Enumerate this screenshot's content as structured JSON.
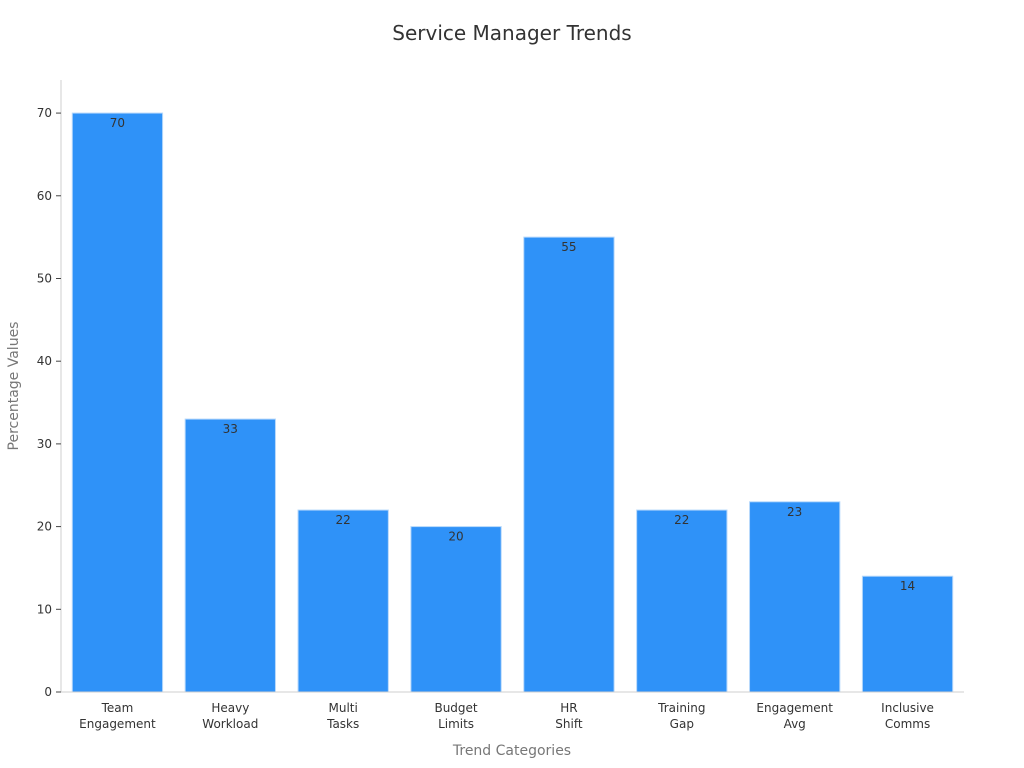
{
  "chart_data": {
    "type": "bar",
    "title": "Service Manager Trends",
    "xlabel": "Trend Categories",
    "ylabel": "Percentage Values",
    "categories": [
      [
        "Team",
        "Engagement"
      ],
      [
        "Heavy",
        "Workload"
      ],
      [
        "Multi",
        "Tasks"
      ],
      [
        "Budget",
        "Limits"
      ],
      [
        "HR",
        "Shift"
      ],
      [
        "Training",
        "Gap"
      ],
      [
        "Engagement",
        "Avg"
      ],
      [
        "Inclusive",
        "Comms"
      ]
    ],
    "values": [
      70,
      33,
      22,
      20,
      55,
      22,
      23,
      14
    ],
    "ylim": [
      0,
      74
    ],
    "yticks": [
      0,
      10,
      20,
      30,
      40,
      50,
      60,
      70
    ],
    "grid": false,
    "legend": "none",
    "colors": {
      "bar": "#2F92F8",
      "bar_edge": "#B6D8FB"
    }
  }
}
